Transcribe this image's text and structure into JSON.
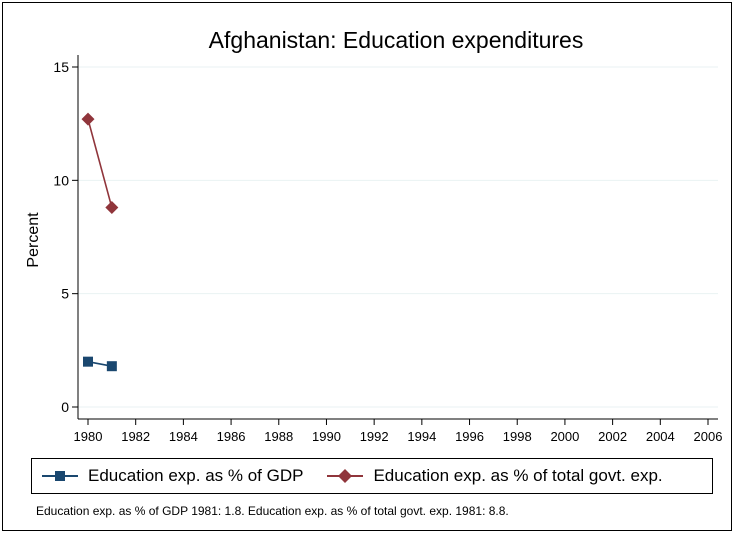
{
  "chart_data": {
    "type": "line",
    "title": "Afghanistan: Education expenditures",
    "xlabel": "",
    "ylabel": "Percent",
    "x_ticks": [
      "1980",
      "1982",
      "1984",
      "1986",
      "1988",
      "1990",
      "1992",
      "1994",
      "1996",
      "1998",
      "2000",
      "2002",
      "2004",
      "2006"
    ],
    "y_ticks": [
      "0",
      "5",
      "10",
      "15"
    ],
    "xlim": [
      1980,
      2006
    ],
    "ylim": [
      0,
      15
    ],
    "grid": true,
    "legend_position": "bottom",
    "series": [
      {
        "name": "Education exp. as % of GDP",
        "color": "#1a476f",
        "marker": "square",
        "points": [
          {
            "x": 1980,
            "y": 2.0
          },
          {
            "x": 1981,
            "y": 1.8
          }
        ]
      },
      {
        "name": "Education exp. as % of total govt. exp.",
        "color": "#90353b",
        "marker": "diamond",
        "points": [
          {
            "x": 1980,
            "y": 12.7
          },
          {
            "x": 1981,
            "y": 8.8
          }
        ]
      }
    ],
    "note": "Education exp. as % of GDP 1981: 1.8. Education exp. as % of total govt. exp. 1981: 8.8."
  }
}
